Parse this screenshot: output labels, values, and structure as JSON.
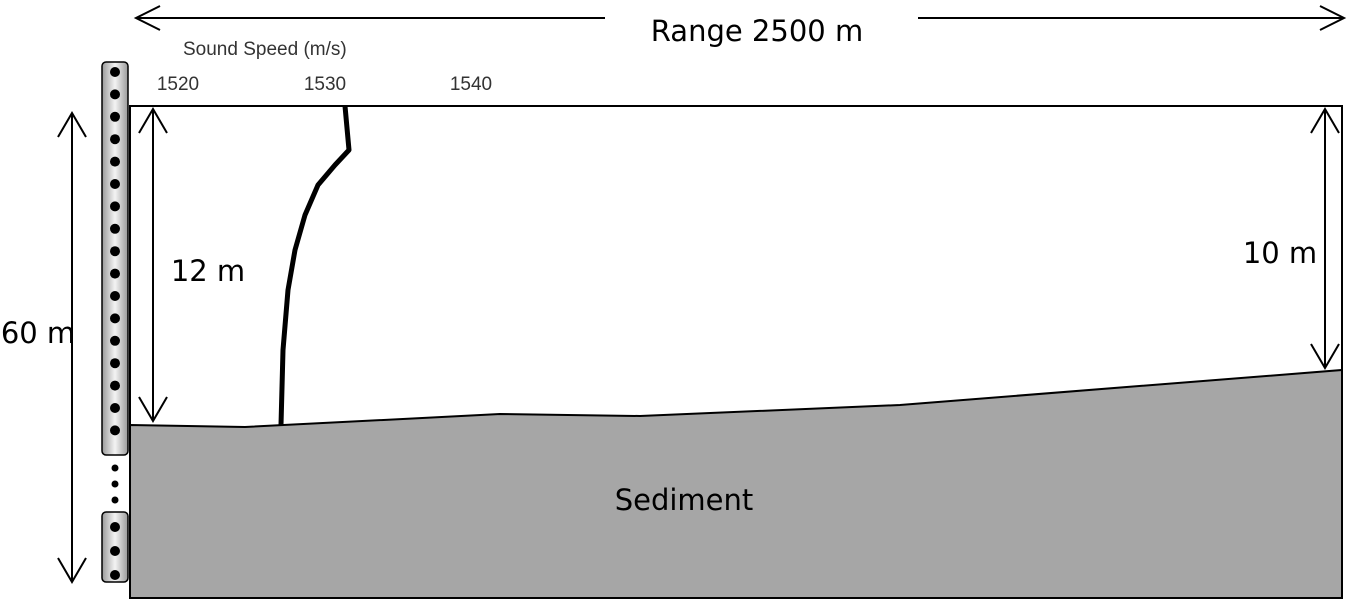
{
  "range_label": "Range 2500 m",
  "sound_speed_axis": {
    "title": "Sound Speed (m/s)",
    "ticks": [
      1520,
      1530,
      1540
    ]
  },
  "depth_left": "12 m",
  "depth_right": "10 m",
  "array_length": "60 m",
  "sediment_label": "Sediment"
}
